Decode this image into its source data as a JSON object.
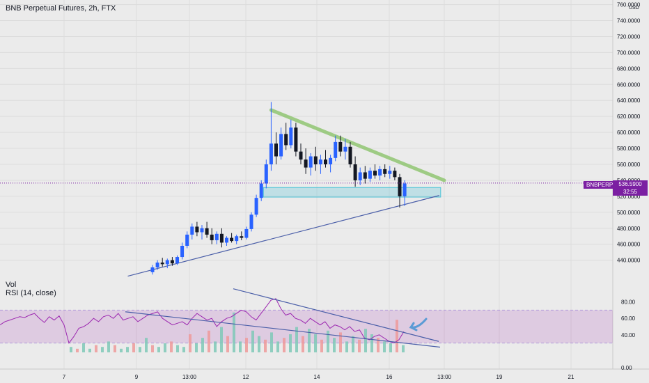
{
  "header": {
    "title": "BNB Perpetual Futures, 2h, FTX"
  },
  "panes": {
    "volume_label": "Vol",
    "rsi_label": "RSI (14, close)"
  },
  "currency": "USD",
  "price_badge": {
    "symbol": "BNBPERP",
    "price": "536.5900",
    "countdown": "32:55"
  },
  "colors": {
    "up": "#2962ff",
    "down": "#131722",
    "vol_up": "#7fc9b7",
    "vol_down": "#ef9a9a",
    "rsi": "#9c27b0",
    "rsi_band": "#d7c4ee",
    "trend": "#4a5ea8",
    "channel": "#8cc46b",
    "zone": "#4fc3d7",
    "arrow": "#5b9bd5"
  },
  "chart_data": [
    {
      "type": "candlestick",
      "title": "BNB Perpetual Futures, 2h, FTX",
      "x_ticks": [
        "7",
        "9",
        "13:00",
        "12",
        "14",
        "16",
        "13:00",
        "19",
        "21"
      ],
      "y_ticks": [
        440,
        460,
        480,
        500,
        520,
        540,
        560,
        580,
        600,
        620,
        640,
        660,
        680,
        700,
        720,
        740,
        760
      ],
      "y_tick_labels": [
        "440.0000",
        "460.0000",
        "480.0000",
        "500.0000",
        "520.0000",
        "540.0000",
        "560.0000",
        "580.0000",
        "600.0000",
        "620.0000",
        "640.0000",
        "660.0000",
        "680.0000",
        "700.0000",
        "720.0000",
        "740.0000",
        "760.0000"
      ],
      "ylim": [
        424,
        764
      ],
      "last_price": 536.59,
      "ohlc_sketch": [
        {
          "i": 0,
          "o": 425,
          "h": 434,
          "l": 422,
          "c": 431
        },
        {
          "i": 1,
          "o": 431,
          "h": 440,
          "l": 428,
          "c": 437
        },
        {
          "i": 2,
          "o": 437,
          "h": 443,
          "l": 432,
          "c": 435
        },
        {
          "i": 3,
          "o": 435,
          "h": 442,
          "l": 430,
          "c": 440
        },
        {
          "i": 4,
          "o": 440,
          "h": 444,
          "l": 433,
          "c": 436
        },
        {
          "i": 5,
          "o": 436,
          "h": 446,
          "l": 434,
          "c": 444
        },
        {
          "i": 6,
          "o": 444,
          "h": 462,
          "l": 441,
          "c": 458
        },
        {
          "i": 7,
          "o": 458,
          "h": 476,
          "l": 455,
          "c": 472
        },
        {
          "i": 8,
          "o": 472,
          "h": 486,
          "l": 466,
          "c": 482
        },
        {
          "i": 9,
          "o": 482,
          "h": 488,
          "l": 470,
          "c": 475
        },
        {
          "i": 10,
          "o": 475,
          "h": 484,
          "l": 466,
          "c": 480
        },
        {
          "i": 11,
          "o": 480,
          "h": 488,
          "l": 468,
          "c": 472
        },
        {
          "i": 12,
          "o": 472,
          "h": 480,
          "l": 460,
          "c": 465
        },
        {
          "i": 13,
          "o": 465,
          "h": 476,
          "l": 460,
          "c": 473
        },
        {
          "i": 14,
          "o": 473,
          "h": 480,
          "l": 456,
          "c": 462
        },
        {
          "i": 15,
          "o": 462,
          "h": 470,
          "l": 458,
          "c": 468
        },
        {
          "i": 16,
          "o": 468,
          "h": 474,
          "l": 462,
          "c": 464
        },
        {
          "i": 17,
          "o": 464,
          "h": 472,
          "l": 460,
          "c": 470
        },
        {
          "i": 18,
          "o": 470,
          "h": 476,
          "l": 465,
          "c": 468
        },
        {
          "i": 19,
          "o": 468,
          "h": 482,
          "l": 466,
          "c": 479
        },
        {
          "i": 20,
          "o": 479,
          "h": 500,
          "l": 476,
          "c": 497
        },
        {
          "i": 21,
          "o": 497,
          "h": 522,
          "l": 494,
          "c": 518
        },
        {
          "i": 22,
          "o": 518,
          "h": 540,
          "l": 514,
          "c": 536
        },
        {
          "i": 23,
          "o": 536,
          "h": 566,
          "l": 530,
          "c": 560
        },
        {
          "i": 24,
          "o": 560,
          "h": 638,
          "l": 552,
          "c": 586
        },
        {
          "i": 25,
          "o": 586,
          "h": 600,
          "l": 560,
          "c": 570
        },
        {
          "i": 26,
          "o": 570,
          "h": 606,
          "l": 566,
          "c": 598
        },
        {
          "i": 27,
          "o": 598,
          "h": 612,
          "l": 578,
          "c": 584
        },
        {
          "i": 28,
          "o": 584,
          "h": 616,
          "l": 580,
          "c": 606
        },
        {
          "i": 29,
          "o": 606,
          "h": 612,
          "l": 570,
          "c": 576
        },
        {
          "i": 30,
          "o": 576,
          "h": 586,
          "l": 560,
          "c": 566
        },
        {
          "i": 31,
          "o": 566,
          "h": 580,
          "l": 548,
          "c": 556
        },
        {
          "i": 32,
          "o": 556,
          "h": 574,
          "l": 546,
          "c": 570
        },
        {
          "i": 33,
          "o": 570,
          "h": 582,
          "l": 552,
          "c": 560
        },
        {
          "i": 34,
          "o": 560,
          "h": 572,
          "l": 548,
          "c": 566
        },
        {
          "i": 35,
          "o": 566,
          "h": 578,
          "l": 556,
          "c": 560
        },
        {
          "i": 36,
          "o": 560,
          "h": 572,
          "l": 550,
          "c": 568
        },
        {
          "i": 37,
          "o": 568,
          "h": 596,
          "l": 564,
          "c": 588
        },
        {
          "i": 38,
          "o": 588,
          "h": 596,
          "l": 570,
          "c": 576
        },
        {
          "i": 39,
          "o": 576,
          "h": 592,
          "l": 566,
          "c": 582
        },
        {
          "i": 40,
          "o": 582,
          "h": 588,
          "l": 556,
          "c": 560
        },
        {
          "i": 41,
          "o": 560,
          "h": 570,
          "l": 532,
          "c": 540
        },
        {
          "i": 42,
          "o": 540,
          "h": 556,
          "l": 534,
          "c": 550
        },
        {
          "i": 43,
          "o": 550,
          "h": 558,
          "l": 536,
          "c": 542
        },
        {
          "i": 44,
          "o": 542,
          "h": 556,
          "l": 538,
          "c": 552
        },
        {
          "i": 45,
          "o": 552,
          "h": 560,
          "l": 542,
          "c": 546
        },
        {
          "i": 46,
          "o": 546,
          "h": 558,
          "l": 540,
          "c": 554
        },
        {
          "i": 47,
          "o": 554,
          "h": 560,
          "l": 544,
          "c": 548
        },
        {
          "i": 48,
          "o": 548,
          "h": 558,
          "l": 542,
          "c": 552
        },
        {
          "i": 49,
          "o": 552,
          "h": 556,
          "l": 540,
          "c": 544
        },
        {
          "i": 50,
          "o": 544,
          "h": 548,
          "l": 506,
          "c": 520
        },
        {
          "i": 51,
          "o": 520,
          "h": 540,
          "l": 508,
          "c": 536
        }
      ],
      "annotations": {
        "descending_channel": [
          [
            24,
            628
          ],
          [
            59,
            540
          ]
        ],
        "ascending_trendline": [
          [
            -5,
            420
          ],
          [
            58,
            521
          ]
        ],
        "support_zone": [
          519,
          531
        ]
      }
    },
    {
      "type": "area",
      "name": "RSI (14, close)",
      "y_ticks": [
        0,
        40,
        60,
        80
      ],
      "y_tick_labels": [
        "0.00",
        "40.00",
        "60.00",
        "80.00"
      ],
      "ylim": [
        0,
        100
      ],
      "band": [
        30,
        70
      ],
      "rsi_values": [
        52,
        56,
        58,
        60,
        62,
        61,
        64,
        66,
        60,
        55,
        62,
        58,
        63,
        52,
        30,
        38,
        48,
        50,
        54,
        60,
        56,
        62,
        64,
        60,
        66,
        58,
        60,
        62,
        56,
        60,
        64,
        66,
        68,
        60,
        56,
        52,
        54,
        56,
        52,
        60,
        66,
        62,
        58,
        60,
        50,
        56,
        60,
        62,
        66,
        70,
        68,
        62,
        58,
        66,
        74,
        82,
        84,
        72,
        64,
        66,
        60,
        58,
        54,
        60,
        56,
        52,
        56,
        48,
        52,
        50,
        46,
        50,
        44,
        46,
        36,
        34,
        38,
        40,
        36,
        32,
        30,
        34,
        44
      ],
      "volume": [
        3,
        2,
        5,
        2,
        4,
        3,
        6,
        4,
        2,
        3,
        5,
        3,
        8,
        4,
        3,
        5,
        6,
        4,
        3,
        10,
        5,
        8,
        12,
        6,
        14,
        9,
        22,
        6,
        8,
        12,
        9,
        7,
        11,
        6,
        8,
        10,
        14,
        9,
        13,
        10,
        7,
        12,
        8,
        11,
        6,
        9,
        7,
        13,
        10,
        8,
        6,
        5,
        18,
        4
      ]
    }
  ]
}
